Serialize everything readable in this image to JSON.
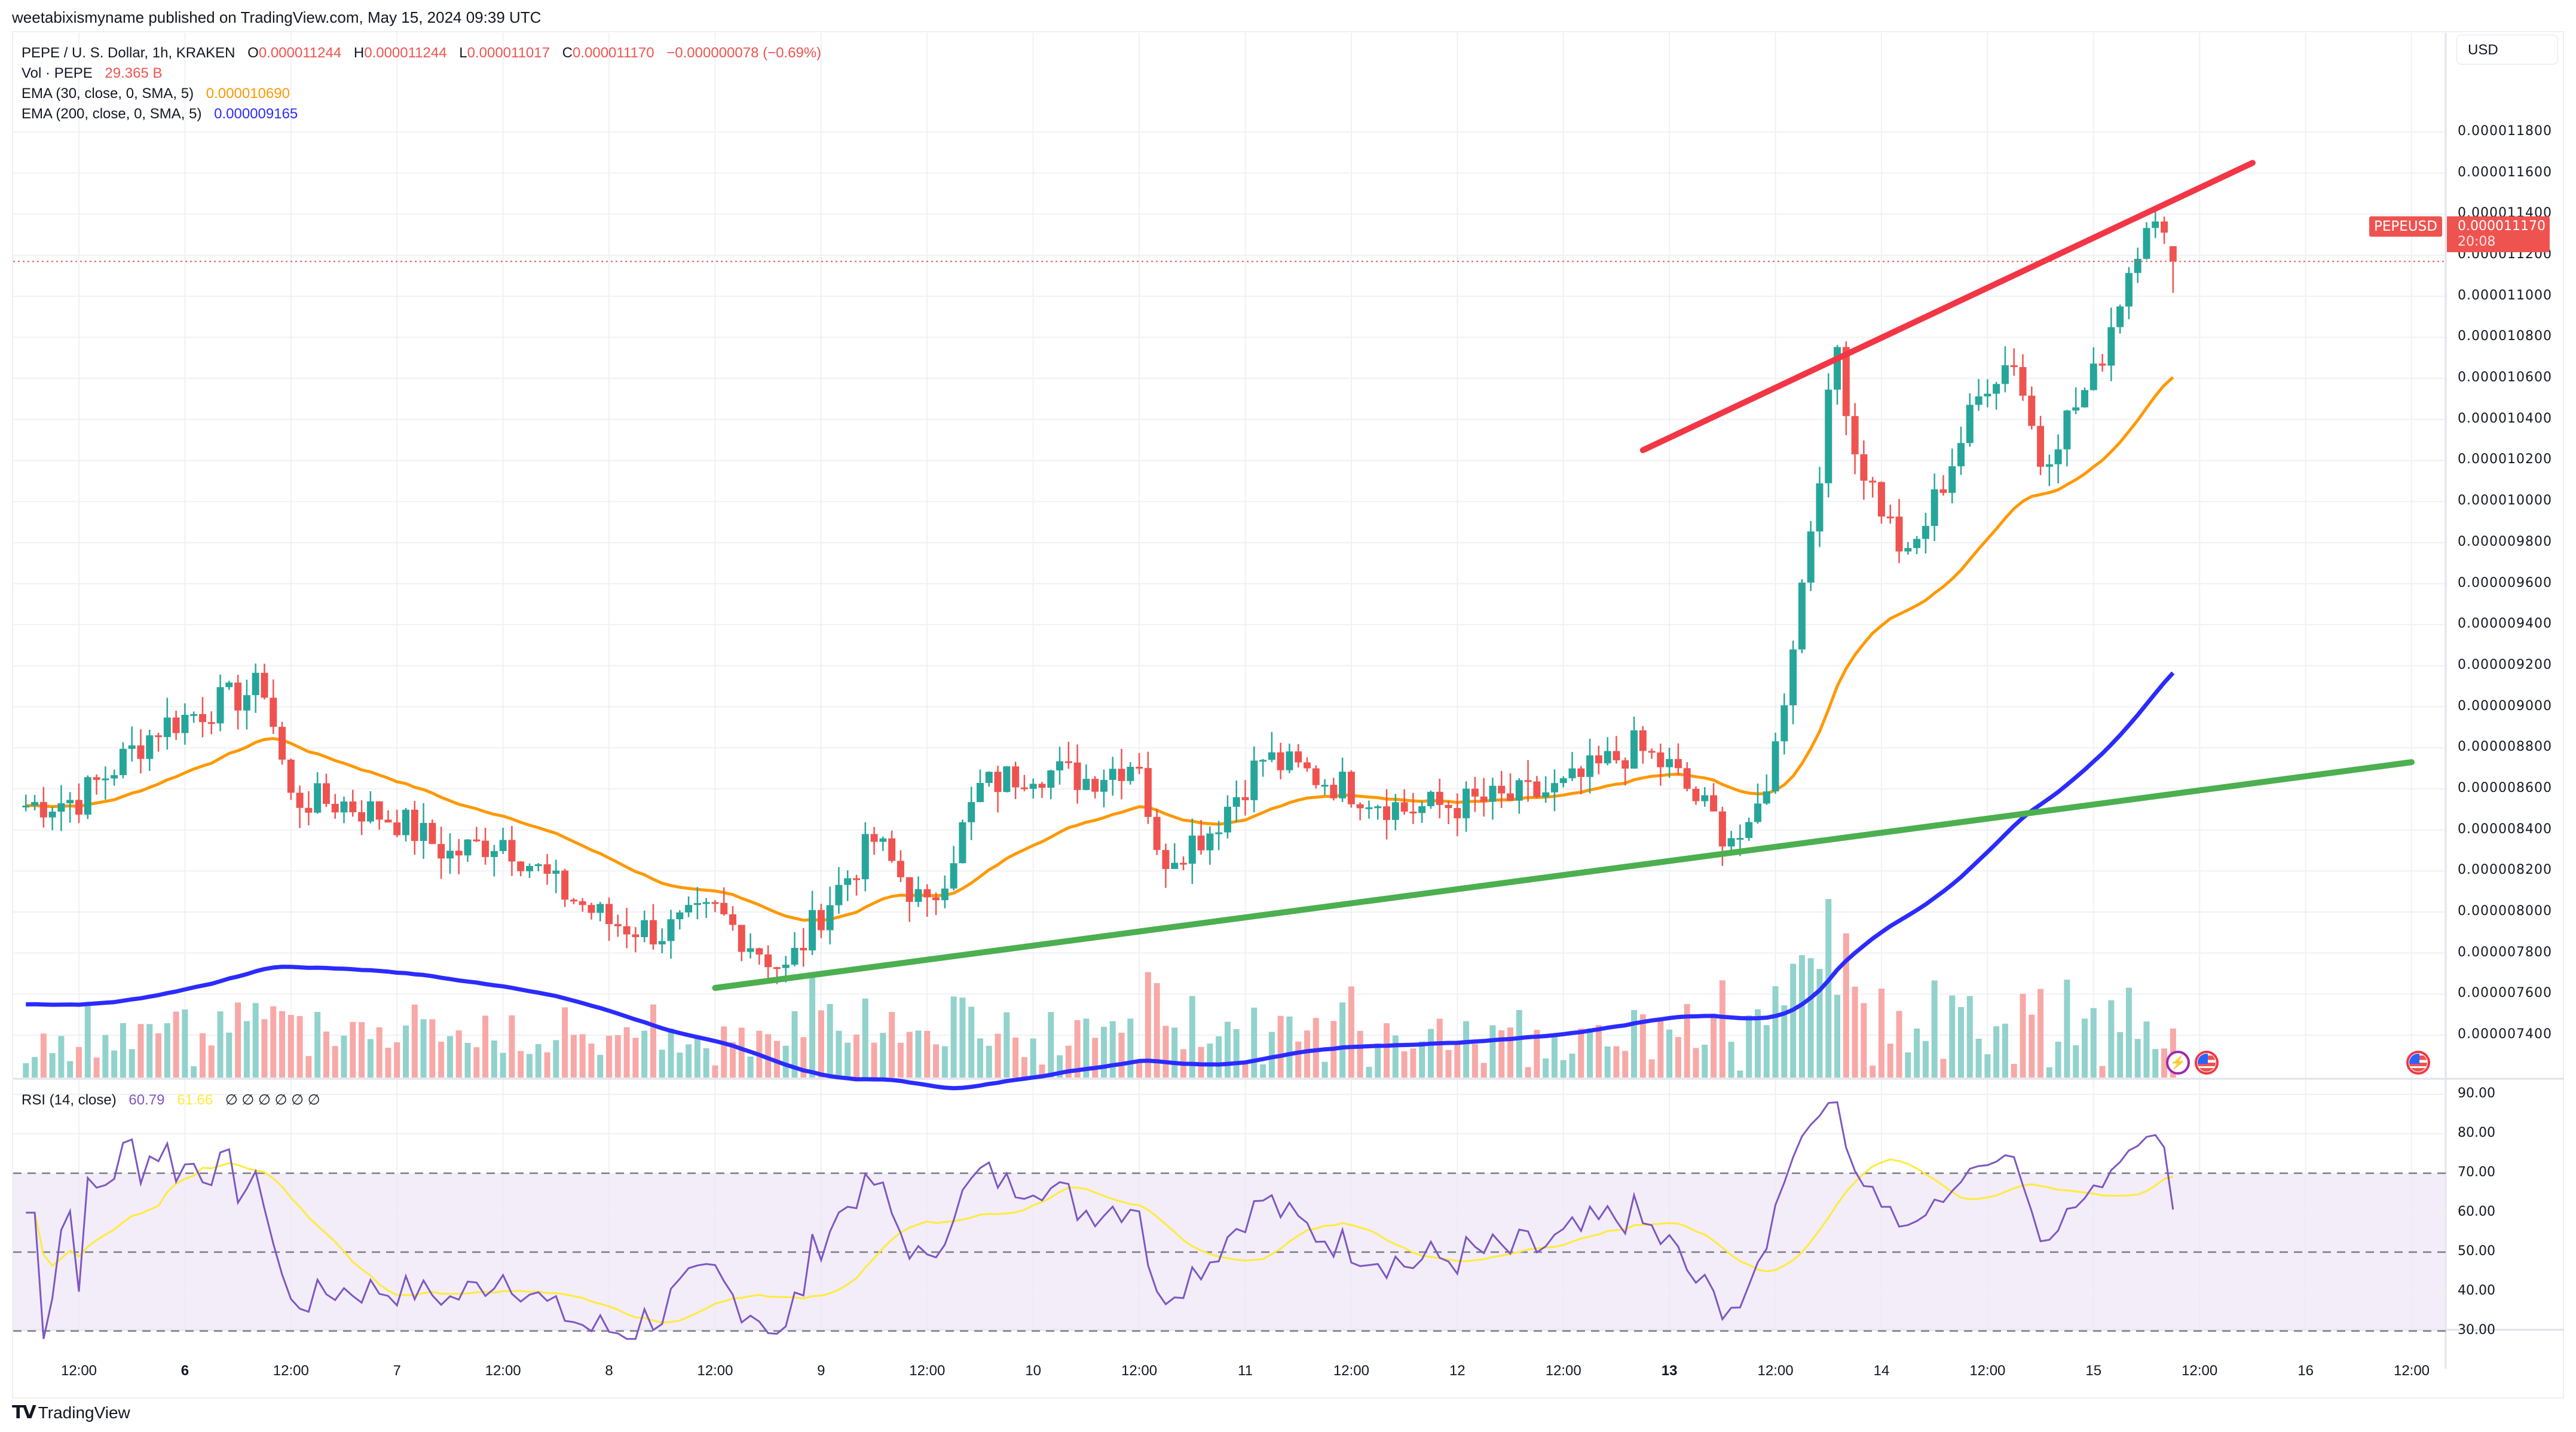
{
  "header": {
    "published": "weetabixismyname published on TradingView.com, May 15, 2024 09:39 UTC"
  },
  "legend": {
    "symbol": "PEPE / U. S. Dollar, 1h, KRAKEN",
    "o_label": "O",
    "o_value": "0.000011244",
    "h_label": "H",
    "h_value": "0.000011244",
    "l_label": "L",
    "l_value": "0.000011017",
    "c_label": "C",
    "c_value": "0.000011170",
    "change": "−0.000000078 (−0.69%)",
    "vol_label": "Vol · PEPE",
    "vol_value": "29.365 B",
    "ema30_label": "EMA (30, close, 0, SMA, 5)",
    "ema30_value": "0.000010690",
    "ema200_label": "EMA (200, close, 0, SMA, 5)",
    "ema200_value": "0.000009165",
    "rsi_label": "RSI (14, close)",
    "rsi_value": "60.79",
    "rsi_ma_value": "61.66",
    "rsi_extra": "∅ ∅ ∅ ∅ ∅ ∅"
  },
  "price_axis": {
    "currency": "USD",
    "ticks": [
      "0.000011800",
      "0.000011600",
      "0.000011400",
      "0.000011200",
      "0.000011000",
      "0.000010800",
      "0.000010600",
      "0.000010400",
      "0.000010200",
      "0.000010000",
      "0.000009800",
      "0.000009600",
      "0.000009400",
      "0.000009200",
      "0.000009000",
      "0.000008800",
      "0.000008600",
      "0.000008400",
      "0.000008200",
      "0.000008000",
      "0.000007800",
      "0.000007600",
      "0.000007400"
    ],
    "symbol_tag": "PEPEUSD",
    "last_price": "0.000011170",
    "countdown": "20:08"
  },
  "rsi_axis": {
    "ticks": [
      "90.00",
      "80.00",
      "70.00",
      "60.00",
      "50.00",
      "40.00",
      "30.00"
    ]
  },
  "time_axis": {
    "labels": [
      {
        "text": "12:00",
        "bold": false
      },
      {
        "text": "6",
        "bold": true
      },
      {
        "text": "12:00",
        "bold": false
      },
      {
        "text": "7",
        "bold": false
      },
      {
        "text": "12:00",
        "bold": false
      },
      {
        "text": "8",
        "bold": false
      },
      {
        "text": "12:00",
        "bold": false
      },
      {
        "text": "9",
        "bold": false
      },
      {
        "text": "12:00",
        "bold": false
      },
      {
        "text": "10",
        "bold": false
      },
      {
        "text": "12:00",
        "bold": false
      },
      {
        "text": "11",
        "bold": false
      },
      {
        "text": "12:00",
        "bold": false
      },
      {
        "text": "12",
        "bold": false
      },
      {
        "text": "12:00",
        "bold": false
      },
      {
        "text": "13",
        "bold": true
      },
      {
        "text": "12:00",
        "bold": false
      },
      {
        "text": "14",
        "bold": false
      },
      {
        "text": "12:00",
        "bold": false
      },
      {
        "text": "15",
        "bold": false
      },
      {
        "text": "12:00",
        "bold": false
      },
      {
        "text": "16",
        "bold": false
      },
      {
        "text": "12:00",
        "bold": false
      }
    ]
  },
  "branding": {
    "logo_text": "TradingView"
  },
  "colors": {
    "up": "#26a69a",
    "down": "#ef5350",
    "vol_up": "#92d2cc",
    "vol_down": "#f7a9a7",
    "ema30": "#ff9800",
    "ema200": "#2b2bff",
    "resistance": "#f23645",
    "support": "#4caf50",
    "rsi": "#7e57c2",
    "rsi_ma": "#ffeb3b",
    "rsi_band": "#7e57c21a",
    "grid": "#f0f1f4"
  },
  "chart_data": {
    "type": "candlestick",
    "title": "PEPE / U. S. Dollar, 1h, KRAKEN",
    "timeframe": "1h",
    "x_range": [
      "2024-05-05 06:00",
      "2024-05-15 09:00"
    ],
    "ylim": [
      7.3e-06,
      1.19e-05
    ],
    "ylabel": "USD",
    "approx_closes_by_segment": [
      {
        "t": "May 5 06:00",
        "close": 8.52e-06
      },
      {
        "t": "May 5 12:00",
        "close": 8.55e-06
      },
      {
        "t": "May 5 21:00",
        "close": 8.9e-06
      },
      {
        "t": "May 6 09:00",
        "close": 9.1e-06
      },
      {
        "t": "May 6 12:00",
        "close": 8.55e-06
      },
      {
        "t": "May 6 18:00",
        "close": 8.53e-06
      },
      {
        "t": "May 7 00:00",
        "close": 8.45e-06
      },
      {
        "t": "May 7 06:00",
        "close": 8.28e-06
      },
      {
        "t": "May 7 12:00",
        "close": 8.36e-06
      },
      {
        "t": "May 7 18:00",
        "close": 8.12e-06
      },
      {
        "t": "May 8 00:00",
        "close": 7.95e-06
      },
      {
        "t": "May 8 06:00",
        "close": 7.9e-06
      },
      {
        "t": "May 8 12:00",
        "close": 8e-06
      },
      {
        "t": "May 8 20:00",
        "close": 7.71e-06
      },
      {
        "t": "May 9 00:00",
        "close": 8e-06
      },
      {
        "t": "May 9 06:00",
        "close": 8.35e-06
      },
      {
        "t": "May 9 12:00",
        "close": 8e-06
      },
      {
        "t": "May 9 18:00",
        "close": 8.6e-06
      },
      {
        "t": "May 10 00:00",
        "close": 8.7e-06
      },
      {
        "t": "May 10 06:00",
        "close": 8.65e-06
      },
      {
        "t": "May 10 12:00",
        "close": 8.75e-06
      },
      {
        "t": "May 10 14:00",
        "close": 8.25e-06
      },
      {
        "t": "May 10 20:00",
        "close": 8.4e-06
      },
      {
        "t": "May 11 02:00",
        "close": 8.75e-06
      },
      {
        "t": "May 11 12:00",
        "close": 8.6e-06
      },
      {
        "t": "May 11 18:00",
        "close": 8.5e-06
      },
      {
        "t": "May 12 06:00",
        "close": 8.55e-06
      },
      {
        "t": "May 12 12:00",
        "close": 8.6e-06
      },
      {
        "t": "May 12 20:00",
        "close": 8.8e-06
      },
      {
        "t": "May 13 00:00",
        "close": 8.7e-06
      },
      {
        "t": "May 13 06:00",
        "close": 8.4e-06
      },
      {
        "t": "May 13 09:00",
        "close": 8.35e-06
      },
      {
        "t": "May 13 12:00",
        "close": 8.8e-06
      },
      {
        "t": "May 13 15:00",
        "close": 9.6e-06
      },
      {
        "t": "May 13 19:00",
        "close": 1.075e-05
      },
      {
        "t": "May 13 21:00",
        "close": 1.025e-05
      },
      {
        "t": "May 14 03:00",
        "close": 9.7e-06
      },
      {
        "t": "May 14 06:00",
        "close": 1e-05
      },
      {
        "t": "May 14 12:00",
        "close": 1.06e-05
      },
      {
        "t": "May 14 15:00",
        "close": 1.07e-05
      },
      {
        "t": "May 14 18:00",
        "close": 1.02e-05
      },
      {
        "t": "May 15 00:00",
        "close": 1.06e-05
      },
      {
        "t": "May 15 06:00",
        "close": 1.14e-05
      },
      {
        "t": "May 15 09:00",
        "close": 1.117e-05
      }
    ],
    "last_bar": {
      "open": 1.1244e-05,
      "high": 1.1244e-05,
      "low": 1.1017e-05,
      "close": 1.117e-05,
      "change": -7.8e-08,
      "change_pct": -0.69
    },
    "volume_last": "29.365 B",
    "indicators": {
      "ema30": {
        "last": 1.069e-05,
        "color": "#ff9800"
      },
      "ema200": {
        "last": 9.165e-06,
        "color": "#2b2bff"
      },
      "rsi14": {
        "last": 60.79,
        "ma": 61.66,
        "overbought": 70,
        "middle": 50,
        "oversold": 30,
        "range": [
          25,
          92
        ],
        "peak": 87,
        "trough": 30
      }
    },
    "drawings": [
      {
        "type": "trendline",
        "name": "resistance",
        "color": "#f23645",
        "from": {
          "t": "May 12 21:00",
          "price": 1.025e-05
        },
        "to": {
          "t": "May 15 18:00",
          "price": 1.165e-05
        }
      },
      {
        "type": "trendline",
        "name": "support",
        "color": "#4caf50",
        "from": {
          "t": "May 8 12:00",
          "price": 7.63e-06
        },
        "to": {
          "t": "May 16 12:00",
          "price": 8.73e-06
        }
      }
    ]
  }
}
